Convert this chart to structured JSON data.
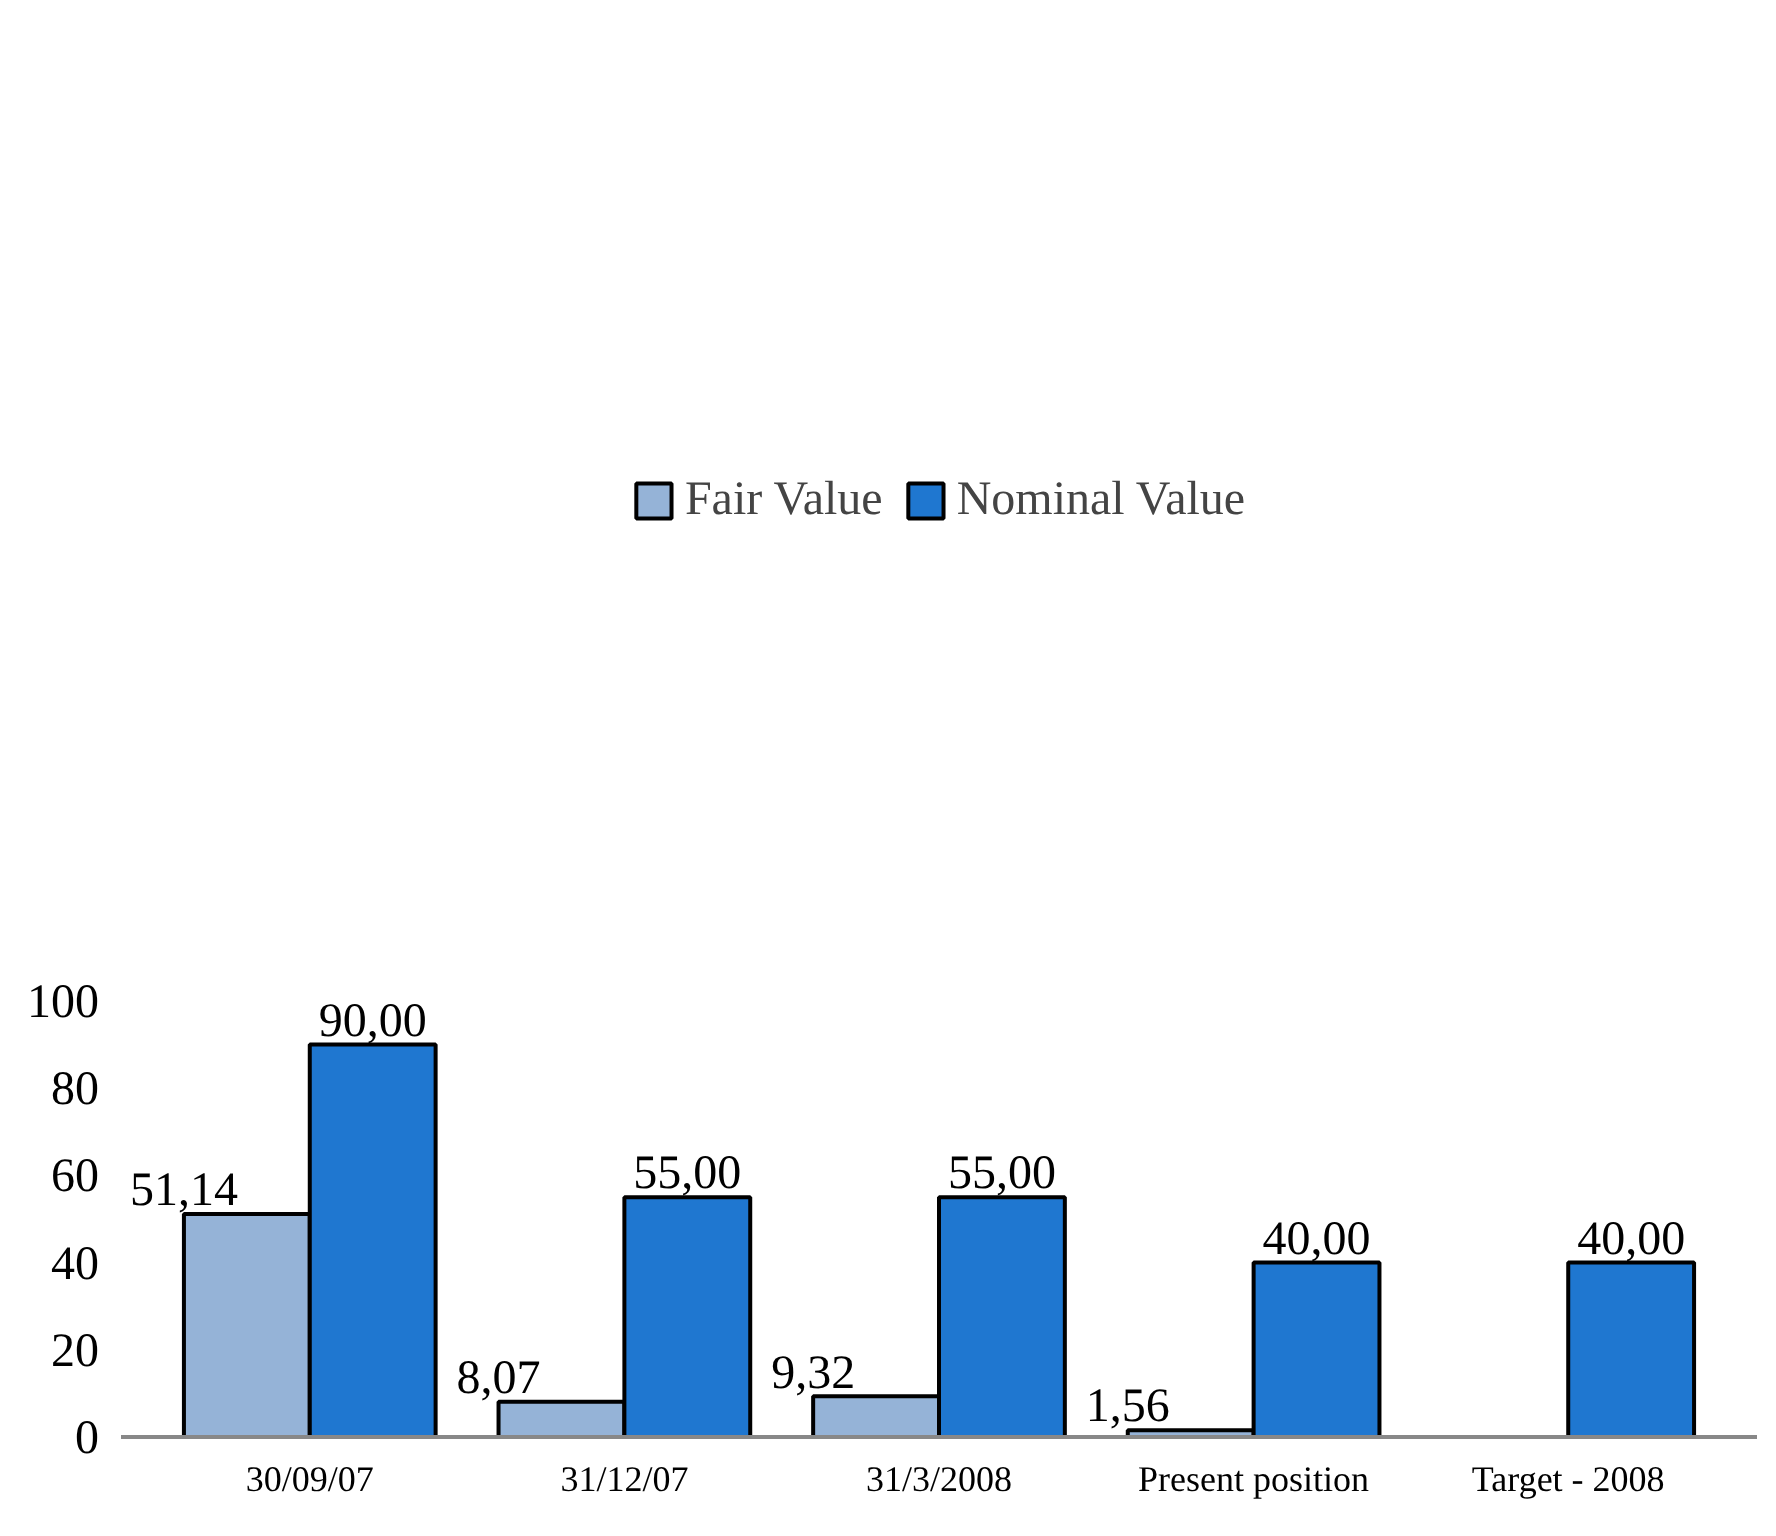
{
  "chart_data": {
    "type": "bar",
    "categories": [
      "30/09/07",
      "31/12/07",
      "31/3/2008",
      "Present position",
      "Target - 2008"
    ],
    "series": [
      {
        "name": "Fair Value",
        "color": "#95b3d7",
        "values": [
          51.14,
          8.07,
          9.32,
          1.56,
          null
        ],
        "value_labels": [
          "51,14",
          "8,07",
          "9,32",
          "1,56",
          null
        ]
      },
      {
        "name": "Nominal Value",
        "color": "#1f77d0",
        "values": [
          90,
          55,
          55,
          40,
          40
        ],
        "value_labels": [
          "90,00",
          "55,00",
          "55,00",
          "40,00",
          "40,00"
        ]
      }
    ],
    "ylim": [
      0,
      100
    ],
    "yticks": [
      0,
      20,
      40,
      60,
      80,
      100
    ],
    "grid": false,
    "legend": "top"
  }
}
